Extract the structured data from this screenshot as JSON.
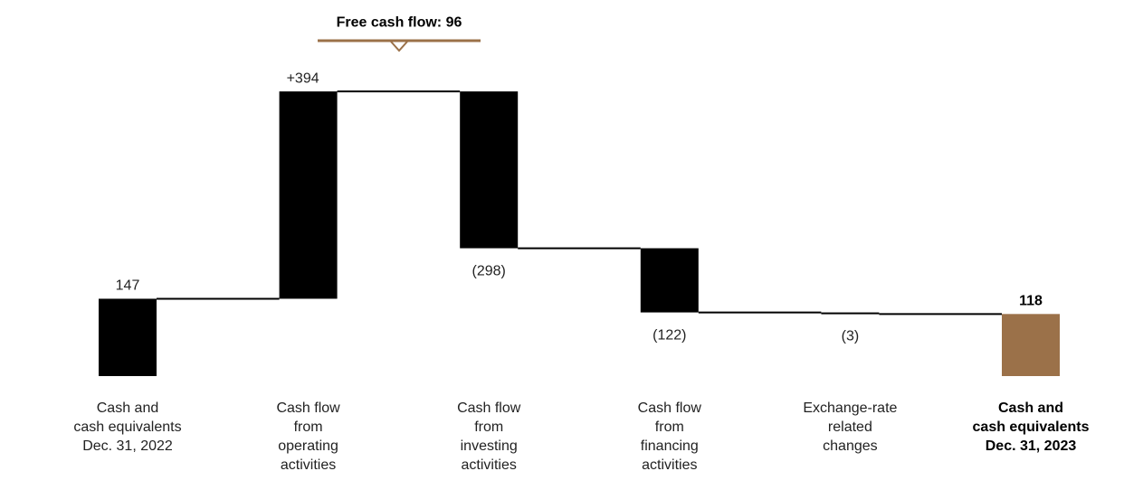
{
  "chart_data": {
    "type": "waterfall",
    "annotation": "Free cash flow: 96",
    "categories": [
      "Cash and\ncash equivalents\nDec. 31, 2022",
      "Cash flow\nfrom\noperating\nactivities",
      "Cash flow\nfrom\ninvesting\nactivities",
      "Cash flow\nfrom\nfinancing\nactivities",
      "Exchange-rate\nrelated\nchanges",
      "Cash and\ncash equivalents\nDec. 31, 2023"
    ],
    "values": [
      147,
      394,
      -298,
      -122,
      -3,
      118
    ],
    "value_labels": [
      "147",
      "+394",
      "(298)",
      "(122)",
      "(3)",
      "118"
    ],
    "bar_types": [
      "total",
      "delta",
      "delta",
      "delta",
      "delta",
      "total"
    ],
    "colors": [
      "#000000",
      "#000000",
      "#000000",
      "#000000",
      "#000000",
      "#9b7149"
    ],
    "annotation_color": "#9b7149"
  }
}
